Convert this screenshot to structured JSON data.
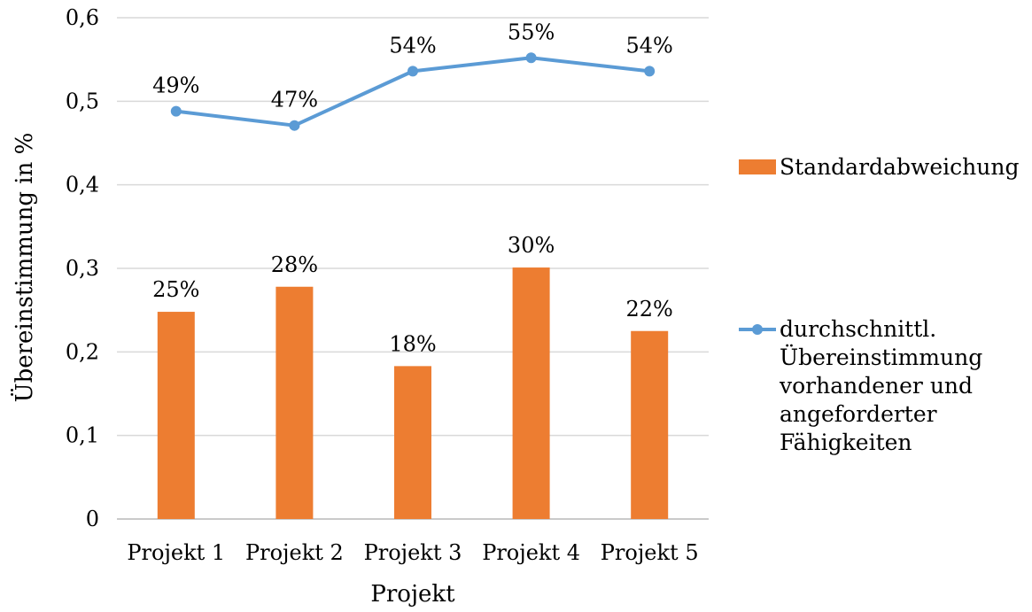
{
  "chart_data": {
    "type": "bar",
    "categories": [
      "Projekt 1",
      "Projekt 2",
      "Projekt 3",
      "Projekt 4",
      "Projekt 5"
    ],
    "series": [
      {
        "name": "Standardabweichung",
        "type": "bar",
        "color": "#ED7D31",
        "values": [
          0.248,
          0.278,
          0.183,
          0.301,
          0.225
        ],
        "labels": [
          "25%",
          "28%",
          "18%",
          "30%",
          "22%"
        ]
      },
      {
        "name": "durchschnittl. Übereinstimmung vorhandener und angeforderter Fähigkeiten",
        "type": "line",
        "color": "#5B9BD5",
        "values": [
          0.488,
          0.471,
          0.536,
          0.552,
          0.536
        ],
        "labels": [
          "49%",
          "47%",
          "54%",
          "55%",
          "54%"
        ]
      }
    ],
    "xlabel": "Projekt",
    "ylabel": "Übereinstimmung in %",
    "ylim": [
      0,
      0.6
    ],
    "yticks": [
      "0",
      "0,1",
      "0,2",
      "0,3",
      "0,4",
      "0,5",
      "0,6"
    ],
    "grid": true,
    "legend": "right"
  }
}
